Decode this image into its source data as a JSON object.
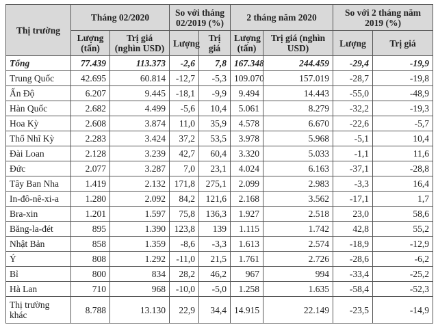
{
  "header": {
    "market": "Thị trường",
    "groups": [
      "Tháng 02/2020",
      "So với tháng 02/2019 (%)",
      "2 tháng năm 2020",
      "So với 2 tháng năm 2019 (%)"
    ],
    "sub": [
      "Lượng (tấn)",
      "Trị giá (nghìn USD)",
      "Lượng",
      "Trị giá",
      "Lượng (tấn)",
      "Trị giá (nghìn USD)",
      "Lượng",
      "Trị giá"
    ]
  },
  "rows": [
    {
      "name": "Tổng",
      "v": [
        "77.439",
        "113.373",
        "-2,6",
        "7,8",
        "167.348",
        "244.459",
        "-29,4",
        "-19,9"
      ]
    },
    {
      "name": "Trung Quốc",
      "v": [
        "42.695",
        "60.814",
        "-12,7",
        "-5,3",
        "109.070",
        "157.019",
        "-28,7",
        "-19,8"
      ]
    },
    {
      "name": "Ấn Độ",
      "v": [
        "6.207",
        "9.445",
        "-18,1",
        "-9,9",
        "9.494",
        "14.443",
        "-55,0",
        "-48,9"
      ]
    },
    {
      "name": "Hàn Quốc",
      "v": [
        "2.682",
        "4.499",
        "-5,6",
        "10,4",
        "5.061",
        "8.279",
        "-32,2",
        "-19,3"
      ]
    },
    {
      "name": "Hoa Kỳ",
      "v": [
        "2.608",
        "3.874",
        "11,0",
        "35,9",
        "4.578",
        "6.670",
        "-22,6",
        "-5,7"
      ]
    },
    {
      "name": "Thổ Nhĩ Kỳ",
      "v": [
        "2.283",
        "3.424",
        "37,2",
        "53,5",
        "3.978",
        "5.968",
        "-5,1",
        "10,4"
      ]
    },
    {
      "name": "Đài Loan",
      "v": [
        "2.128",
        "3.239",
        "42,7",
        "60,4",
        "3.320",
        "5.033",
        "-1,1",
        "11,6"
      ]
    },
    {
      "name": "Đức",
      "v": [
        "2.077",
        "3.287",
        "7,0",
        "23,1",
        "4.024",
        "6.163",
        "-37,1",
        "-28,8"
      ]
    },
    {
      "name": "Tây Ban Nha",
      "v": [
        "1.419",
        "2.132",
        "171,8",
        "275,1",
        "2.099",
        "2.983",
        "-3,3",
        "16,4"
      ]
    },
    {
      "name": "In-đô-nê-xi-a",
      "v": [
        "1.280",
        "2.092",
        "84,2",
        "121,6",
        "2.168",
        "3.562",
        "-17,1",
        "1,7"
      ]
    },
    {
      "name": "Bra-xin",
      "v": [
        "1.201",
        "1.597",
        "75,8",
        "136,3",
        "1.927",
        "2.518",
        "23,0",
        "58,6"
      ]
    },
    {
      "name": "Băng-la-đét",
      "v": [
        "895",
        "1.390",
        "123,8",
        "139",
        "1.115",
        "1.742",
        "42,8",
        "55,2"
      ]
    },
    {
      "name": "Nhật Bản",
      "v": [
        "858",
        "1.359",
        "-8,6",
        "-3,3",
        "1.613",
        "2.574",
        "-18,9",
        "-12,9"
      ]
    },
    {
      "name": "Ý",
      "v": [
        "808",
        "1.292",
        "-11,0",
        "21,5",
        "1.761",
        "2.726",
        "-28,6",
        "-6,2"
      ]
    },
    {
      "name": "Bỉ",
      "v": [
        "800",
        "834",
        "28,2",
        "46,2",
        "967",
        "994",
        "-33,4",
        "-25,2"
      ]
    },
    {
      "name": "Hà Lan",
      "v": [
        "710",
        "968",
        "-10,0",
        "-5,0",
        "1.258",
        "1.635",
        "-58,4",
        "-52,3"
      ]
    },
    {
      "name": "Thị trường khác",
      "v": [
        "8.788",
        "13.130",
        "22,9",
        "34,4",
        "14.915",
        "22.149",
        "-23,5",
        "-14,9"
      ]
    }
  ]
}
